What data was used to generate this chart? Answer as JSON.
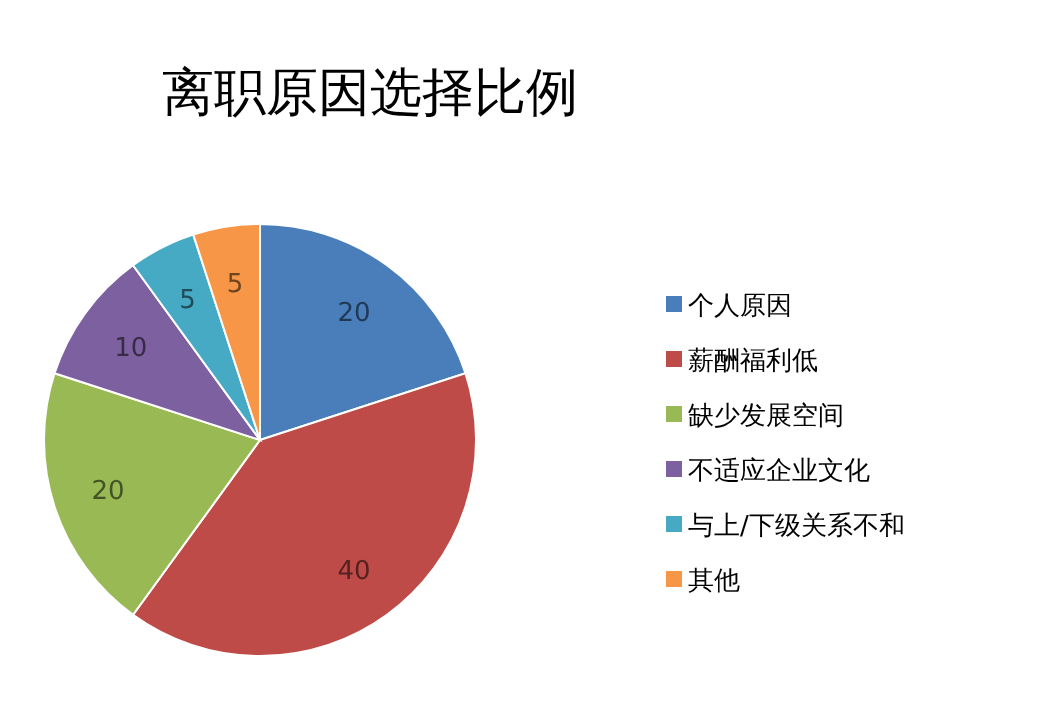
{
  "chart_data": {
    "type": "pie",
    "title": "离职原因选择比例",
    "categories": [
      "个人原因",
      "薪酬福利低",
      "缺少发展空间",
      "不适应企业文化",
      "与上/下级关系不和",
      "其他"
    ],
    "values": [
      20,
      40,
      20,
      10,
      5,
      5
    ],
    "colors": [
      "#4a7ebb",
      "#be4b48",
      "#98b954",
      "#7d60a0",
      "#46aac5",
      "#f79646"
    ],
    "data_labels": true,
    "legend": "right"
  }
}
